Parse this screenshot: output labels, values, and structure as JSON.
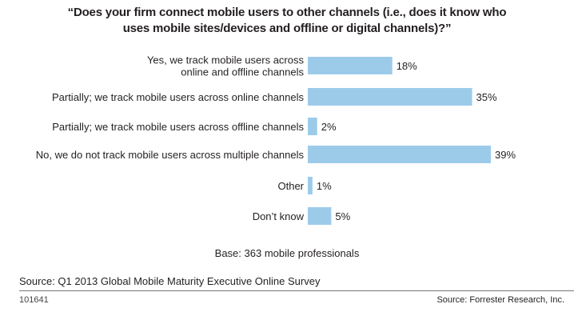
{
  "chart_data": {
    "type": "bar",
    "orientation": "horizontal",
    "title": "“Does your firm connect mobile users to other channels (i.e., does it know who uses mobile sites/devices and offline or digital channels)?”",
    "title_lines": [
      "“Does your firm connect mobile users to other channels (i.e., does it know who",
      "uses mobile sites/devices and offline or digital channels)?”"
    ],
    "categories": [
      [
        "Yes, we track mobile users across",
        "online and offline channels"
      ],
      [
        "Partially; we track mobile users across online channels"
      ],
      [
        "Partially; we track mobile users across offline channels"
      ],
      [
        "No, we do not track mobile users across multiple channels"
      ],
      [
        "Other"
      ],
      [
        "Don’t know"
      ]
    ],
    "values": [
      18,
      35,
      2,
      39,
      1,
      5
    ],
    "value_labels": [
      "18%",
      "35%",
      "2%",
      "39%",
      "1%",
      "5%"
    ],
    "unit": "%",
    "xlim": [
      0,
      39
    ],
    "grid": false,
    "legend": "none",
    "bar_color": "#9ccbea",
    "xlabel": "",
    "ylabel": ""
  },
  "footer": {
    "base": "Base: 363 mobile professionals",
    "source": "Source: Q1 2013 Global Mobile Maturity Executive Online Survey",
    "id": "101641",
    "credit": "Source: Forrester Research, Inc."
  }
}
